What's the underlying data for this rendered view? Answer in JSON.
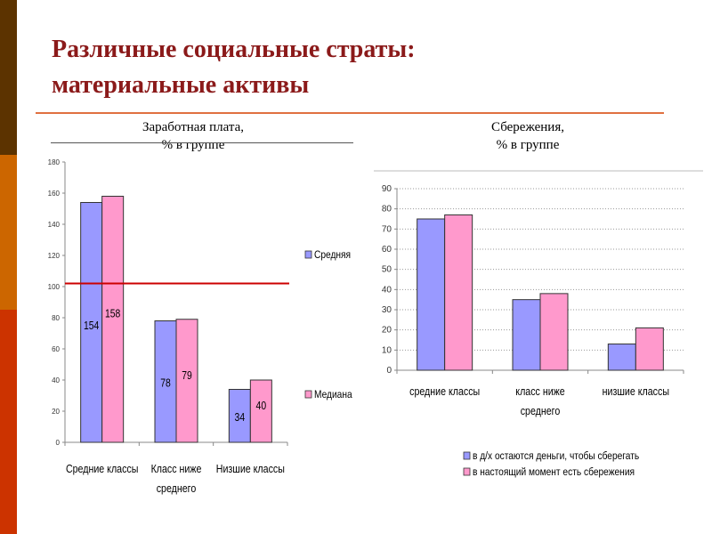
{
  "slide": {
    "title_line1": "Различные социальные страты:",
    "title_line2": "материальные активы",
    "left_header_line1": "Заработная плата,",
    "left_header_line2": "% в группе",
    "right_header_line1": "Сбережения,",
    "right_header_line2": "% в группе",
    "strip_colors": [
      "#5c3300",
      "#cc6600",
      "#cc3300"
    ]
  },
  "chart_data": [
    {
      "type": "bar",
      "title": "Заработная плата, % в группе",
      "categories": [
        [
          "Средние классы"
        ],
        [
          "Класс ниже",
          "среднего"
        ],
        [
          "Низшие классы"
        ]
      ],
      "series": [
        {
          "name": "Средняя",
          "color": "#9999ff",
          "values": [
            154,
            78,
            34
          ]
        },
        {
          "name": "Медиана",
          "color": "#ff99cc",
          "values": [
            158,
            79,
            40
          ]
        }
      ],
      "ylim": [
        0,
        180
      ],
      "yticks": [
        "0",
        "20",
        "40",
        "60",
        "80",
        "100",
        "120",
        "140",
        "160",
        "180"
      ],
      "reference_line": {
        "value": 102,
        "color": "#cc0000"
      },
      "data_labels": true,
      "legend": "right",
      "grid": false
    },
    {
      "type": "bar",
      "title": "Сбережения, % в группе",
      "categories": [
        [
          "средние классы"
        ],
        [
          "класс ниже",
          "среднего"
        ],
        [
          "низшие классы"
        ]
      ],
      "series": [
        {
          "name": "в д/х остаются деньги, чтобы сберегать",
          "color": "#9999ff",
          "values": [
            75,
            35,
            13
          ]
        },
        {
          "name": "в настоящий момент есть сбережения",
          "color": "#ff99cc",
          "values": [
            77,
            38,
            21
          ]
        }
      ],
      "ylim": [
        0,
        90
      ],
      "yticks": [
        "0",
        "10",
        "20",
        "30",
        "40",
        "50",
        "60",
        "70",
        "80",
        "90"
      ],
      "legend": "bottom",
      "grid": true
    }
  ]
}
